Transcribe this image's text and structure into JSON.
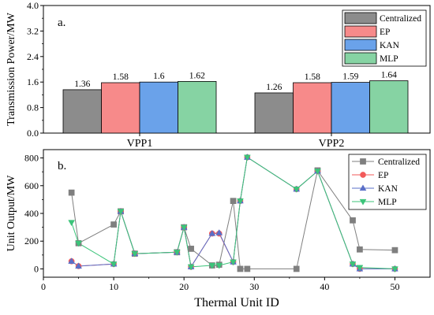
{
  "chart_data": [
    {
      "type": "bar",
      "panel_label": "a.",
      "ylabel": "Transmission Power/MW",
      "xlabel": "",
      "ylim": [
        0,
        4.0
      ],
      "yticks": [
        "0.0",
        "0.8",
        "1.6",
        "2.4",
        "3.2",
        "4.0"
      ],
      "categories": [
        "VPP1",
        "VPP2"
      ],
      "legend_position": "top-right",
      "series": [
        {
          "name": "Centralized",
          "color": "#8c8c8c",
          "values": [
            1.36,
            1.26
          ],
          "labels": [
            "1.36",
            "1.26"
          ]
        },
        {
          "name": "EP",
          "color": "#f78a8a",
          "values": [
            1.58,
            1.58
          ],
          "labels": [
            "1.58",
            "1.58"
          ]
        },
        {
          "name": "KAN",
          "color": "#6aa2ea",
          "values": [
            1.6,
            1.59
          ],
          "labels": [
            "1.6",
            "1.59"
          ]
        },
        {
          "name": "MLP",
          "color": "#86d3a3",
          "values": [
            1.62,
            1.64
          ],
          "labels": [
            "1.62",
            "1.64"
          ]
        }
      ]
    },
    {
      "type": "line",
      "panel_label": "b.",
      "ylabel": "Unit Output/MW",
      "xlabel": "Thermal Unit ID",
      "xlim": [
        0,
        55
      ],
      "ylim": [
        -60,
        860
      ],
      "xticks": [
        "0",
        "10",
        "20",
        "30",
        "40",
        "50"
      ],
      "yticks": [
        "0",
        "200",
        "400",
        "600",
        "800"
      ],
      "legend_position": "top-right",
      "series": [
        {
          "name": "Centralized",
          "color": "#7f7f7f",
          "marker": "square",
          "x": [
            4,
            5,
            10,
            11,
            13,
            19,
            20,
            21,
            24,
            25,
            27,
            28,
            29,
            36,
            39,
            44,
            45,
            50
          ],
          "y": [
            550,
            185,
            320,
            415,
            110,
            120,
            300,
            145,
            25,
            30,
            490,
            0,
            0,
            0,
            710,
            350,
            140,
            135
          ]
        },
        {
          "name": "EP",
          "color": "#f25a5a",
          "marker": "circle",
          "x": [
            4,
            5,
            10,
            11,
            13,
            19,
            20,
            21,
            24,
            25,
            27,
            28,
            29,
            36,
            39,
            44,
            45,
            50
          ],
          "y": [
            55,
            20,
            35,
            415,
            110,
            120,
            300,
            15,
            255,
            255,
            50,
            490,
            805,
            575,
            705,
            35,
            0,
            0
          ]
        },
        {
          "name": "KAN",
          "color": "#5a6fc8",
          "marker": "triangle-up",
          "x": [
            4,
            5,
            10,
            11,
            13,
            19,
            20,
            21,
            24,
            25,
            27,
            28,
            29,
            36,
            39,
            44,
            45,
            50
          ],
          "y": [
            55,
            20,
            35,
            415,
            110,
            120,
            300,
            15,
            255,
            260,
            50,
            490,
            805,
            575,
            705,
            35,
            0,
            0
          ]
        },
        {
          "name": "MLP",
          "color": "#3cc47a",
          "marker": "triangle-down",
          "x": [
            4,
            5,
            10,
            11,
            13,
            19,
            20,
            21,
            24,
            25,
            27,
            28,
            29,
            36,
            39,
            44,
            45,
            50
          ],
          "y": [
            335,
            185,
            35,
            415,
            110,
            120,
            300,
            15,
            25,
            25,
            50,
            490,
            805,
            575,
            705,
            35,
            10,
            0
          ]
        }
      ]
    }
  ]
}
